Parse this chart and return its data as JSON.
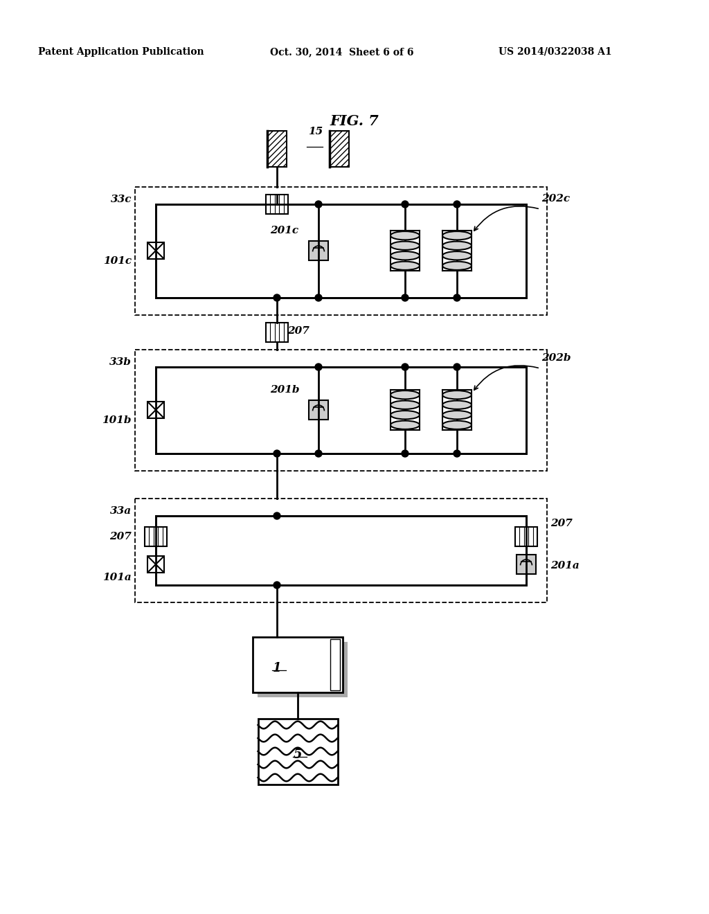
{
  "title": "FIG. 7",
  "header_left": "Patent Application Publication",
  "header_mid": "Oct. 30, 2014  Sheet 6 of 6",
  "header_right": "US 2014/0322038 A1",
  "bg_color": "#ffffff",
  "line_color": "#000000",
  "fig_width": 10.24,
  "fig_height": 13.2,
  "dpi": 100
}
